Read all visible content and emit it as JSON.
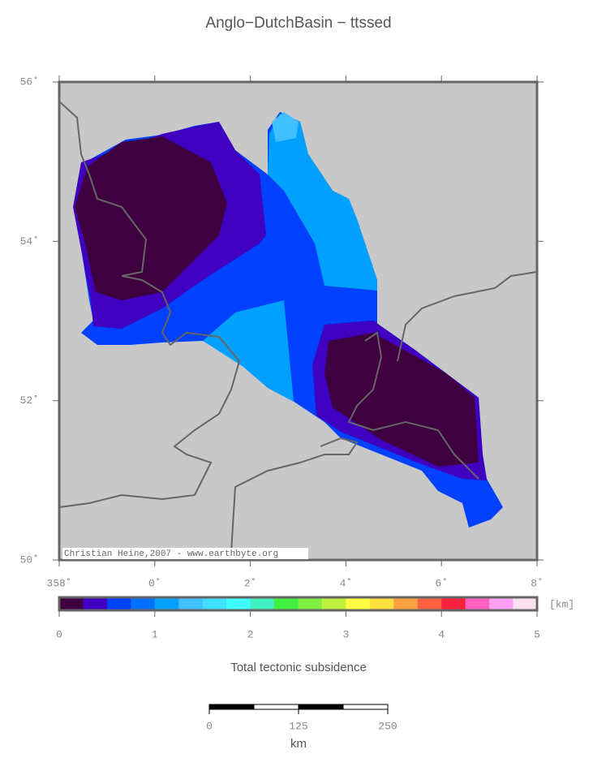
{
  "title": "Anglo−DutchBasin − ttssed",
  "map": {
    "lat_labels": [
      "56˚",
      "54˚",
      "52˚",
      "50˚"
    ],
    "lon_labels": [
      "358˚",
      "0˚",
      "2˚",
      "4˚",
      "6˚",
      "8˚"
    ],
    "credit": "Christian Heine,2007 - www.earthbyte.org"
  },
  "colorbar": {
    "colors": [
      "#3f0040",
      "#3f00c0",
      "#0040ff",
      "#0070ff",
      "#00a0ff",
      "#40c0ff",
      "#40e0ff",
      "#40ffff",
      "#40f0c0",
      "#40f040",
      "#80f040",
      "#c0f040",
      "#ffff40",
      "#ffe040",
      "#ffa040",
      "#ff6040",
      "#ff2040",
      "#ff60c0",
      "#ffa0f0",
      "#ffe0f0"
    ],
    "ticks": [
      0,
      1,
      2,
      3,
      4,
      5
    ],
    "unit": "[km]",
    "label": "Total tectonic subsidence"
  },
  "scale_bar": {
    "ticks": [
      0,
      125,
      250
    ],
    "unit": "km"
  }
}
